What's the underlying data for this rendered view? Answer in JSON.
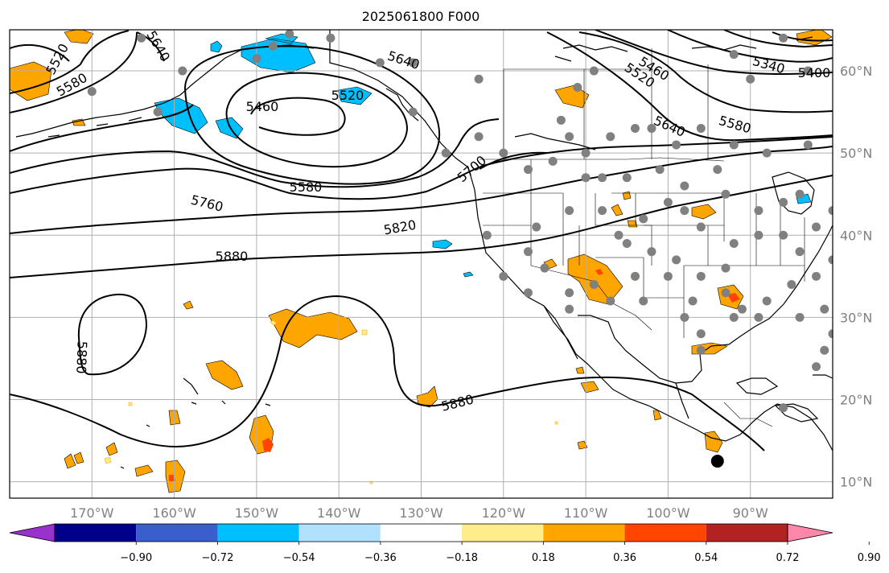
{
  "title": "2025061800 F000",
  "map": {
    "lon_min": -180,
    "lon_max": -80,
    "lat_min": 8,
    "lat_max": 65,
    "lon_labels": [
      "170°W",
      "160°W",
      "150°W",
      "140°W",
      "130°W",
      "120°W",
      "110°W",
      "100°W",
      "90°W"
    ],
    "lat_labels": [
      "10°N",
      "20°N",
      "30°N",
      "40°N",
      "50°N",
      "60°N"
    ],
    "contour_labels": [
      "5520",
      "5580",
      "5640",
      "5460",
      "5520",
      "5640",
      "5460",
      "5520",
      "5340",
      "5400",
      "5640",
      "5580",
      "5580",
      "5760",
      "5820",
      "5880",
      "5880",
      "5880",
      "5700"
    ],
    "colors": {
      "land_outline": "#000000",
      "contour": "#000000",
      "grid": "#b0b0b0",
      "station": "#808080",
      "marker": "#000000"
    },
    "marker": {
      "lon": -94,
      "lat": 12.5
    }
  },
  "colorbar": {
    "colors": [
      "#9932cc",
      "#00008b",
      "#3a5fcd",
      "#00bfff",
      "#b0e2ff",
      "#ffffff",
      "#ffec8b",
      "#ffa500",
      "#ff4500",
      "#b22222",
      "#ff88aa"
    ],
    "tick_labels": [
      "−0.90",
      "−0.72",
      "−0.54",
      "−0.36",
      "−0.18",
      "0.18",
      "0.36",
      "0.54",
      "0.72",
      "0.90"
    ]
  }
}
